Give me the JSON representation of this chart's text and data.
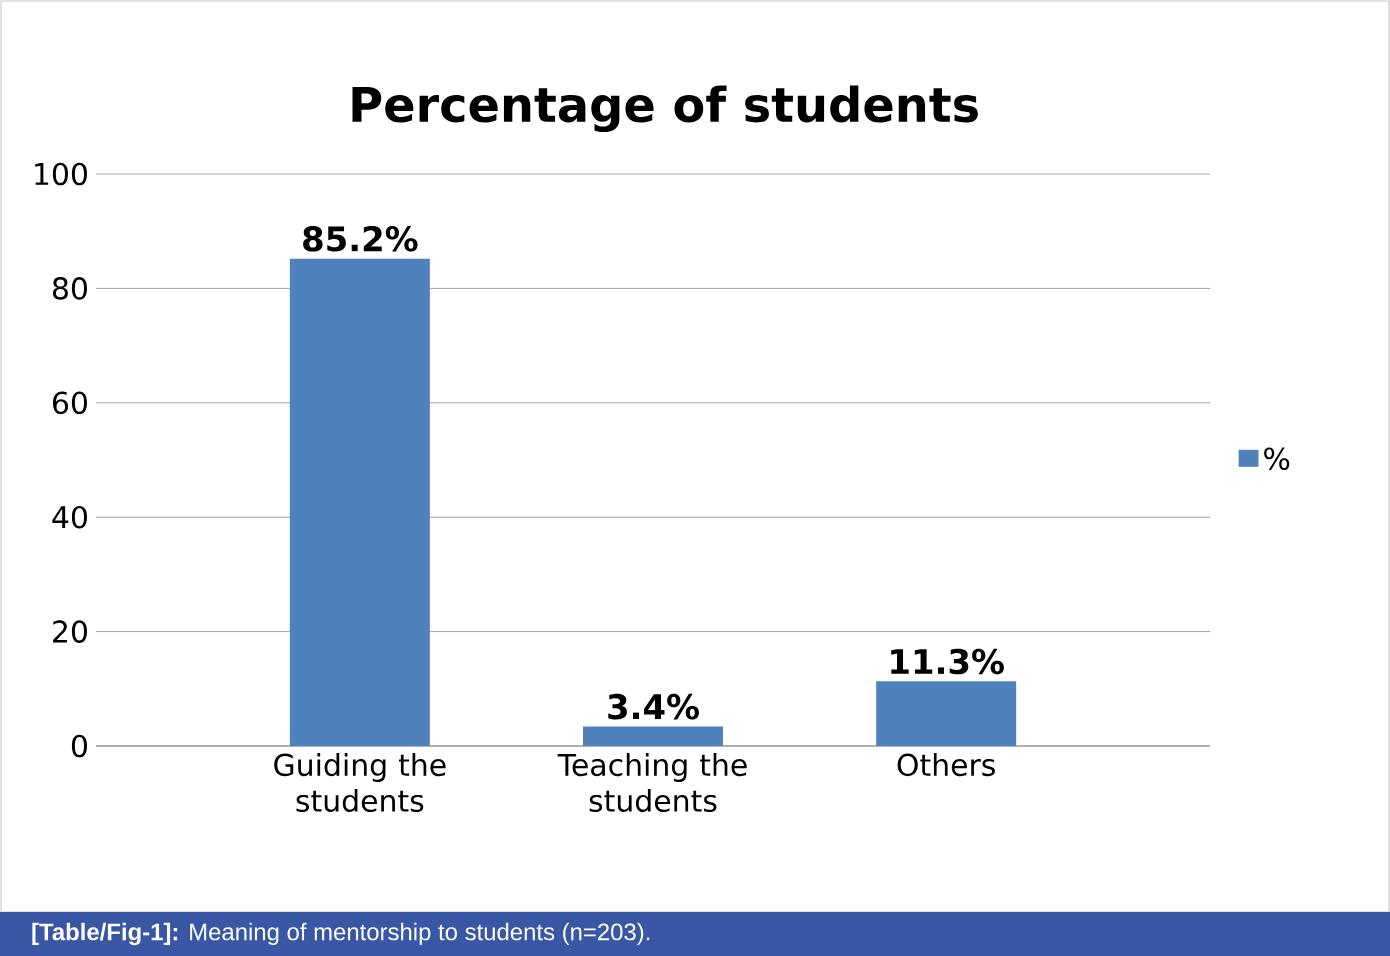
{
  "chart_data": {
    "type": "bar",
    "title": "Percentage of students",
    "categories": [
      "Guiding the students",
      "Teaching the students",
      "Others"
    ],
    "series": [
      {
        "name": "%",
        "color": "#4f81bd",
        "values": [
          85.2,
          3.4,
          11.3
        ]
      }
    ],
    "value_labels": [
      "85.2%",
      "3.4%",
      "11.3%"
    ],
    "ylim": [
      0,
      100
    ],
    "yticks": [
      0,
      20,
      40,
      60,
      80,
      100
    ],
    "grid": "y",
    "legend": "right",
    "annotations": [
      "**[Table/Fig-1]:** Meaning of mentorship to students (n=203)."
    ]
  }
}
